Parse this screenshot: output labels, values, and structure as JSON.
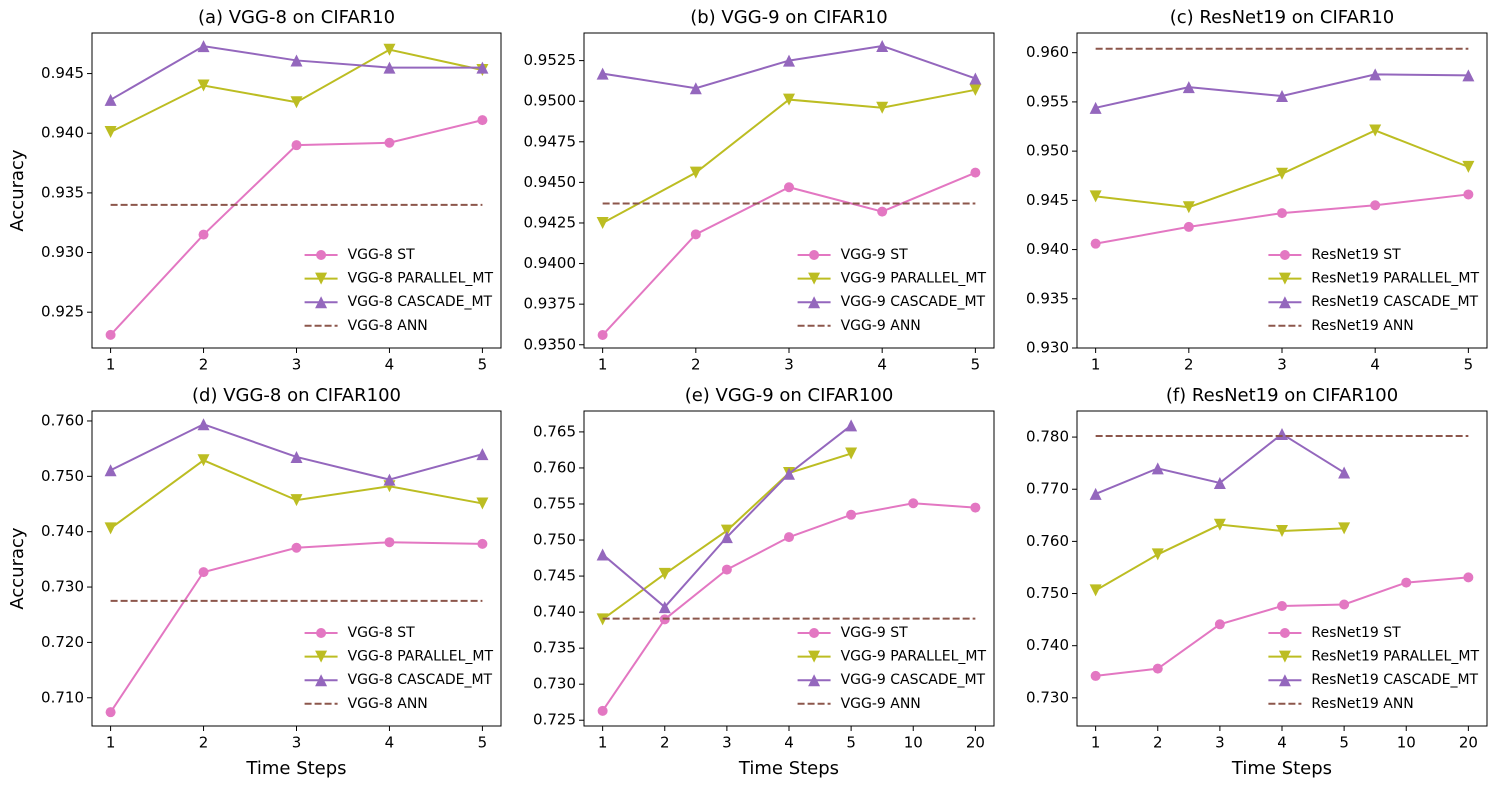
{
  "chart_data": [
    {
      "type": "line",
      "title": "(a) VGG-8 on CIFAR10",
      "ylabel": "Accuracy",
      "x": [
        1,
        2,
        3,
        4,
        5
      ],
      "xlim": [
        0.8,
        5.2
      ],
      "xticks": [
        1,
        2,
        3,
        4,
        5
      ],
      "ylim": [
        0.922,
        0.9484
      ],
      "yticks": [
        0.925,
        {
          "value": 0.93,
          "label": "0.930"
        },
        0.935,
        {
          "value": 0.94,
          "label": "0.940"
        },
        0.945
      ],
      "legend": "lower right",
      "series": [
        {
          "name": "VGG-8 ST",
          "color": "#e377c2",
          "marker": "circle",
          "linestyle": "solid",
          "values": [
            0.9231,
            0.9315,
            0.939,
            0.9392,
            0.9411
          ]
        },
        {
          "name": "VGG-8 PARALLEL_MT",
          "color": "#bcbd22",
          "marker": "triangle-down",
          "linestyle": "solid",
          "values": [
            0.9401,
            0.944,
            0.9426,
            0.947,
            0.9453
          ]
        },
        {
          "name": "VGG-8 CASCADE_MT",
          "color": "#9467bd",
          "marker": "triangle-up",
          "linestyle": "solid",
          "values": [
            0.9428,
            0.9473,
            0.9461,
            0.9455,
            0.9455
          ]
        },
        {
          "name": "VGG-8 ANN",
          "color": "#8c564b",
          "marker": "none",
          "linestyle": "dashed",
          "values": [
            0.934,
            0.934,
            0.934,
            0.934,
            0.934
          ]
        }
      ]
    },
    {
      "type": "line",
      "title": "(b) VGG-9 on CIFAR10",
      "x": [
        1,
        2,
        3,
        4,
        5
      ],
      "xlim": [
        0.8,
        5.2
      ],
      "xticks": [
        1,
        2,
        3,
        4,
        5
      ],
      "ylim": [
        0.9348,
        0.9542
      ],
      "yticks": [
        {
          "value": 0.935,
          "label": "0.9350"
        },
        0.9375,
        {
          "value": 0.94,
          "label": "0.9400"
        },
        0.9425,
        {
          "value": 0.945,
          "label": "0.9450"
        },
        0.9475,
        {
          "value": 0.95,
          "label": "0.9500"
        },
        0.9525
      ],
      "legend": "lower right",
      "series": [
        {
          "name": "VGG-9 ST",
          "color": "#e377c2",
          "marker": "circle",
          "linestyle": "solid",
          "values": [
            0.9356,
            0.9418,
            0.9447,
            0.9432,
            0.9456
          ]
        },
        {
          "name": "VGG-9 PARALLEL_MT",
          "color": "#bcbd22",
          "marker": "triangle-down",
          "linestyle": "solid",
          "values": [
            0.9425,
            0.9456,
            0.9501,
            0.9496,
            0.9507
          ]
        },
        {
          "name": "VGG-9 CASCADE_MT",
          "color": "#9467bd",
          "marker": "triangle-up",
          "linestyle": "solid",
          "values": [
            0.9517,
            0.9508,
            0.9525,
            0.9534,
            0.9514
          ]
        },
        {
          "name": "VGG-9 ANN",
          "color": "#8c564b",
          "marker": "none",
          "linestyle": "dashed",
          "values": [
            0.9437,
            0.9437,
            0.9437,
            0.9437,
            0.9437
          ]
        }
      ]
    },
    {
      "type": "line",
      "title": "(c) ResNet19 on CIFAR10",
      "x": [
        1,
        2,
        3,
        4,
        5
      ],
      "xlim": [
        0.8,
        5.2
      ],
      "xticks": [
        1,
        2,
        3,
        4,
        5
      ],
      "ylim": [
        0.93,
        0.962
      ],
      "yticks": [
        {
          "value": 0.93,
          "label": "0.930"
        },
        0.935,
        {
          "value": 0.94,
          "label": "0.940"
        },
        0.945,
        {
          "value": 0.95,
          "label": "0.950"
        },
        0.955,
        {
          "value": 0.96,
          "label": "0.960"
        }
      ],
      "legend": "lower right",
      "series": [
        {
          "name": "ResNet19 ST",
          "color": "#e377c2",
          "marker": "circle",
          "linestyle": "solid",
          "values": [
            0.9406,
            0.9423,
            0.9437,
            0.9445,
            0.9456
          ]
        },
        {
          "name": "ResNet19 PARALLEL_MT",
          "color": "#bcbd22",
          "marker": "triangle-down",
          "linestyle": "solid",
          "values": [
            0.9454,
            0.9443,
            0.9477,
            0.9521,
            0.9484
          ]
        },
        {
          "name": "ResNet19 CASCADE_MT",
          "color": "#9467bd",
          "marker": "triangle-up",
          "linestyle": "solid",
          "values": [
            0.9544,
            0.9565,
            0.9556,
            0.9578,
            0.9577
          ]
        },
        {
          "name": "ResNet19 ANN",
          "color": "#8c564b",
          "marker": "none",
          "linestyle": "dashed",
          "values": [
            0.9604,
            0.9604,
            0.9604,
            0.9604,
            0.9604
          ]
        }
      ]
    },
    {
      "type": "line",
      "title": "(d) VGG-8 on CIFAR100",
      "ylabel": "Accuracy",
      "xlabel": "Time Steps",
      "x": [
        1,
        2,
        3,
        4,
        5
      ],
      "xlim": [
        0.8,
        5.2
      ],
      "xticks": [
        1,
        2,
        3,
        4,
        5
      ],
      "ylim": [
        0.7049,
        0.7618
      ],
      "yticks": [
        {
          "value": 0.71,
          "label": "0.710"
        },
        {
          "value": 0.72,
          "label": "0.720"
        },
        {
          "value": 0.73,
          "label": "0.730"
        },
        {
          "value": 0.74,
          "label": "0.740"
        },
        {
          "value": 0.75,
          "label": "0.750"
        },
        {
          "value": 0.76,
          "label": "0.760"
        }
      ],
      "legend": "lower right",
      "series": [
        {
          "name": "VGG-8 ST",
          "color": "#e377c2",
          "marker": "circle",
          "linestyle": "solid",
          "values": [
            0.7074,
            0.7327,
            0.7371,
            0.7381,
            0.7378
          ]
        },
        {
          "name": "VGG-8 PARALLEL_MT",
          "color": "#bcbd22",
          "marker": "triangle-down",
          "linestyle": "solid",
          "values": [
            0.7406,
            0.7529,
            0.7457,
            0.7482,
            0.7451
          ]
        },
        {
          "name": "VGG-8 CASCADE_MT",
          "color": "#9467bd",
          "marker": "triangle-up",
          "linestyle": "solid",
          "values": [
            0.7511,
            0.7594,
            0.7535,
            0.7494,
            0.754
          ]
        },
        {
          "name": "VGG-8 ANN",
          "color": "#8c564b",
          "marker": "none",
          "linestyle": "dashed",
          "values": [
            0.7275,
            0.7275,
            0.7275,
            0.7275,
            0.7275
          ]
        }
      ]
    },
    {
      "type": "line",
      "title": "(e) VGG-9 on CIFAR100",
      "xlabel": "Time Steps",
      "categories": [
        "1",
        "2",
        "3",
        "4",
        "5",
        "10",
        "20"
      ],
      "ylim": [
        0.7242,
        0.7679
      ],
      "yticks": [
        0.725,
        {
          "value": 0.73,
          "label": "0.730"
        },
        0.735,
        {
          "value": 0.74,
          "label": "0.740"
        },
        0.745,
        {
          "value": 0.75,
          "label": "0.750"
        },
        0.755,
        {
          "value": 0.76,
          "label": "0.760"
        },
        0.765
      ],
      "legend": "lower right",
      "series": [
        {
          "name": "VGG-9 ST",
          "color": "#e377c2",
          "marker": "circle",
          "linestyle": "solid",
          "values": [
            0.7263,
            0.739,
            0.7459,
            0.7504,
            0.7535,
            0.7551,
            0.7545
          ]
        },
        {
          "name": "VGG-9 PARALLEL_MT",
          "color": "#bcbd22",
          "marker": "triangle-down",
          "linestyle": "solid",
          "values": [
            0.739,
            0.7453,
            0.7513,
            0.7593,
            0.762,
            null,
            null
          ]
        },
        {
          "name": "VGG-9 CASCADE_MT",
          "color": "#9467bd",
          "marker": "triangle-up",
          "linestyle": "solid",
          "values": [
            0.748,
            0.7407,
            0.7504,
            0.7592,
            0.7659,
            null,
            null
          ]
        },
        {
          "name": "VGG-9 ANN",
          "color": "#8c564b",
          "marker": "none",
          "linestyle": "dashed",
          "values": [
            0.7391,
            0.7391,
            0.7391,
            0.7391,
            0.7391,
            0.7391,
            0.7391
          ]
        }
      ]
    },
    {
      "type": "line",
      "title": "(f) ResNet19 on CIFAR100",
      "xlabel": "Time Steps",
      "categories": [
        "1",
        "2",
        "3",
        "4",
        "5",
        "10",
        "20"
      ],
      "ylim": [
        0.7246,
        0.785
      ],
      "yticks": [
        {
          "value": 0.73,
          "label": "0.730"
        },
        {
          "value": 0.74,
          "label": "0.740"
        },
        {
          "value": 0.75,
          "label": "0.750"
        },
        {
          "value": 0.76,
          "label": "0.760"
        },
        {
          "value": 0.77,
          "label": "0.770"
        },
        {
          "value": 0.78,
          "label": "0.780"
        }
      ],
      "legend": "lower right",
      "series": [
        {
          "name": "ResNet19 ST",
          "color": "#e377c2",
          "marker": "circle",
          "linestyle": "solid",
          "values": [
            0.7342,
            0.7356,
            0.7441,
            0.7476,
            0.7479,
            0.7521,
            0.7531
          ]
        },
        {
          "name": "ResNet19 PARALLEL_MT",
          "color": "#bcbd22",
          "marker": "triangle-down",
          "linestyle": "solid",
          "values": [
            0.7506,
            0.7575,
            0.7632,
            0.762,
            0.7625,
            null,
            null
          ]
        },
        {
          "name": "ResNet19 CASCADE_MT",
          "color": "#9467bd",
          "marker": "triangle-up",
          "linestyle": "solid",
          "values": [
            0.7691,
            0.774,
            0.7712,
            0.7806,
            0.7732,
            null,
            null
          ]
        },
        {
          "name": "ResNet19 ANN",
          "color": "#8c564b",
          "marker": "none",
          "linestyle": "dashed",
          "values": [
            0.7802,
            0.7802,
            0.7802,
            0.7802,
            0.7802,
            0.7802,
            0.7802
          ]
        }
      ]
    }
  ]
}
